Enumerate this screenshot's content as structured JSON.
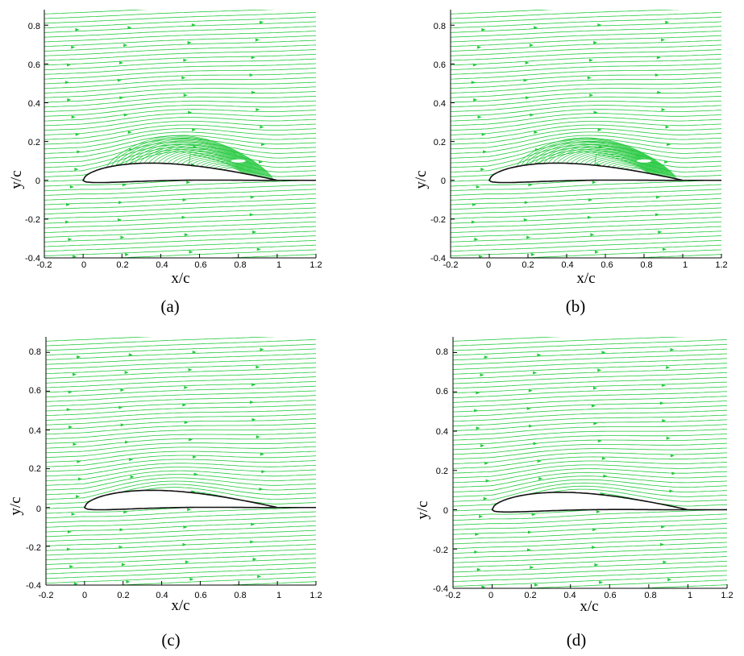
{
  "chart_data": [
    {
      "type": "streamline",
      "caption": "(a)",
      "xlabel": "x/c",
      "ylabel": "y/c",
      "xlim": [
        -0.2,
        1.2
      ],
      "ylim": [
        -0.4,
        0.88
      ],
      "xticks": [
        "-0.2",
        "0",
        "0.2",
        "0.4",
        "0.6",
        "0.8",
        "1",
        "1.2"
      ],
      "yticks": [
        "-0.4",
        "-0.2",
        "0",
        "0.2",
        "0.4",
        "0.6",
        "0.8"
      ],
      "separation_bubble": {
        "x_start": 0.12,
        "x_end": 0.98,
        "center_x": 0.8,
        "center_y": 0.1,
        "height": 0.17
      }
    },
    {
      "type": "streamline",
      "caption": "(b)",
      "xlabel": "x/c",
      "ylabel": "y/c",
      "xlim": [
        -0.2,
        1.2
      ],
      "ylim": [
        -0.4,
        0.88
      ],
      "xticks": [
        "-0.2",
        "0",
        "0.2",
        "0.4",
        "0.6",
        "0.8",
        "1",
        "1.2"
      ],
      "yticks": [
        "-0.4",
        "-0.2",
        "0",
        "0.2",
        "0.4",
        "0.6",
        "0.8"
      ],
      "separation_bubble": {
        "x_start": 0.14,
        "x_end": 0.97,
        "center_x": 0.8,
        "center_y": 0.1,
        "height": 0.16
      }
    },
    {
      "type": "streamline",
      "caption": "(c)",
      "xlabel": "x/c",
      "ylabel": "y/c",
      "xlim": [
        -0.2,
        1.2
      ],
      "ylim": [
        -0.4,
        0.88
      ],
      "xticks": [
        "-0.2",
        "0",
        "0.2",
        "0.4",
        "0.6",
        "0.8",
        "1",
        "1.2"
      ],
      "yticks": [
        "-0.4",
        "-0.2",
        "0",
        "0.2",
        "0.4",
        "0.6",
        "0.8"
      ],
      "separation_bubble": null
    },
    {
      "type": "streamline",
      "caption": "(d)",
      "xlabel": "x/c",
      "ylabel": "y/c",
      "xlim": [
        -0.2,
        1.2
      ],
      "ylim": [
        -0.4,
        0.88
      ],
      "xticks": [
        "-0.2",
        "0",
        "0.2",
        "0.4",
        "0.6",
        "0.8",
        "1",
        "1.2"
      ],
      "yticks": [
        "-0.4",
        "-0.2",
        "0",
        "0.2",
        "0.4",
        "0.6",
        "0.8"
      ],
      "separation_bubble": null
    }
  ],
  "colors": {
    "streamline": "#22c83c",
    "airfoil": "#111111",
    "axis": "#000000"
  }
}
